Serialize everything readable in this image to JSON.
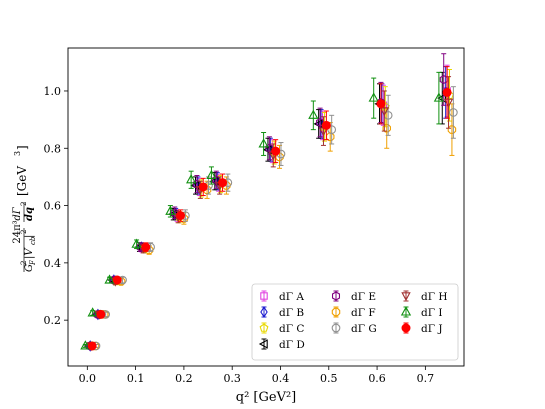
{
  "chart_data": {
    "type": "scatter",
    "xlabel": "q² [GeV²]",
    "ylabel_parts": [
      "24π³",
      "dΓ",
      "G",
      "F",
      "2",
      "|V",
      "cb",
      "|",
      "2",
      "dq",
      "2",
      "[GeV",
      "3",
      "]"
    ],
    "xlim": [
      -0.04,
      0.78
    ],
    "ylim": [
      0.04,
      1.15
    ],
    "xticks": [
      "0.0",
      "0.1",
      "0.2",
      "0.3",
      "0.4",
      "0.5",
      "0.6",
      "0.7"
    ],
    "xtick_values": [
      0.0,
      0.1,
      0.2,
      0.3,
      0.4,
      0.5,
      0.6,
      0.7
    ],
    "yticks": [
      "0.2",
      "0.4",
      "0.6",
      "0.8",
      "1.0"
    ],
    "ytick_values": [
      0.2,
      0.4,
      0.6,
      0.8,
      1.0
    ],
    "legend_position": "lower-right",
    "series": [
      {
        "name": "dΓ A",
        "color": "#e040e0",
        "marker": "square",
        "points": [
          [
            0.007,
            0.11,
            0.005
          ],
          [
            0.024,
            0.22,
            0.008
          ],
          [
            0.057,
            0.34,
            0.01
          ],
          [
            0.115,
            0.45,
            0.015
          ],
          [
            0.186,
            0.565,
            0.02
          ],
          [
            0.232,
            0.665,
            0.03
          ],
          [
            0.272,
            0.68,
            0.03
          ],
          [
            0.383,
            0.79,
            0.04
          ],
          [
            0.487,
            0.88,
            0.05
          ],
          [
            0.613,
            0.95,
            0.07
          ],
          [
            0.745,
            1.0,
            0.09
          ]
        ]
      },
      {
        "name": "dΓ B",
        "color": "#2020d0",
        "marker": "diamond",
        "points": [
          [
            0.006,
            0.11,
            0.005
          ],
          [
            0.022,
            0.22,
            0.008
          ],
          [
            0.055,
            0.34,
            0.01
          ],
          [
            0.112,
            0.455,
            0.015
          ],
          [
            0.183,
            0.57,
            0.02
          ],
          [
            0.229,
            0.67,
            0.03
          ],
          [
            0.269,
            0.685,
            0.03
          ],
          [
            0.379,
            0.795,
            0.04
          ],
          [
            0.484,
            0.885,
            0.05
          ],
          [
            0.61,
            0.955,
            0.07
          ],
          [
            0.742,
            0.995,
            0.09
          ]
        ]
      },
      {
        "name": "dΓ C",
        "color": "#e8d800",
        "marker": "pentagon",
        "points": [
          [
            0.009,
            0.11,
            0.005
          ],
          [
            0.026,
            0.22,
            0.008
          ],
          [
            0.059,
            0.335,
            0.01
          ],
          [
            0.118,
            0.45,
            0.015
          ],
          [
            0.19,
            0.56,
            0.02
          ],
          [
            0.236,
            0.66,
            0.03
          ],
          [
            0.276,
            0.675,
            0.03
          ],
          [
            0.387,
            0.785,
            0.04
          ],
          [
            0.491,
            0.875,
            0.05
          ],
          [
            0.617,
            0.945,
            0.07
          ],
          [
            0.75,
            0.985,
            0.09
          ]
        ]
      },
      {
        "name": "dΓ D",
        "color": "#000000",
        "marker": "triangle-left",
        "points": [
          [
            0.003,
            0.11,
            0.005
          ],
          [
            0.019,
            0.22,
            0.008
          ],
          [
            0.052,
            0.34,
            0.01
          ],
          [
            0.108,
            0.455,
            0.015
          ],
          [
            0.178,
            0.57,
            0.02
          ],
          [
            0.224,
            0.67,
            0.03
          ],
          [
            0.264,
            0.685,
            0.03
          ],
          [
            0.374,
            0.795,
            0.04
          ],
          [
            0.479,
            0.885,
            0.05
          ],
          [
            0.605,
            0.955,
            0.07
          ],
          [
            0.735,
            0.975,
            0.09
          ]
        ]
      },
      {
        "name": "dΓ E",
        "color": "#800080",
        "marker": "hexagon",
        "points": [
          [
            0.005,
            0.11,
            0.005
          ],
          [
            0.021,
            0.22,
            0.008
          ],
          [
            0.054,
            0.34,
            0.01
          ],
          [
            0.11,
            0.455,
            0.015
          ],
          [
            0.181,
            0.575,
            0.02
          ],
          [
            0.227,
            0.675,
            0.03
          ],
          [
            0.267,
            0.69,
            0.03
          ],
          [
            0.377,
            0.8,
            0.04
          ],
          [
            0.482,
            0.89,
            0.05
          ],
          [
            0.608,
            0.96,
            0.07
          ],
          [
            0.738,
            1.04,
            0.09
          ]
        ]
      },
      {
        "name": "dΓ F",
        "color": "#f0a000",
        "marker": "octagon",
        "points": [
          [
            0.016,
            0.11,
            0.005
          ],
          [
            0.035,
            0.22,
            0.008
          ],
          [
            0.07,
            0.335,
            0.01
          ],
          [
            0.128,
            0.445,
            0.015
          ],
          [
            0.2,
            0.555,
            0.02
          ],
          [
            0.248,
            0.655,
            0.03
          ],
          [
            0.288,
            0.67,
            0.03
          ],
          [
            0.398,
            0.77,
            0.04
          ],
          [
            0.503,
            0.84,
            0.05
          ],
          [
            0.62,
            0.87,
            0.07
          ],
          [
            0.755,
            0.865,
            0.09
          ]
        ]
      },
      {
        "name": "dΓ G",
        "color": "#909090",
        "marker": "circle-open",
        "points": [
          [
            0.018,
            0.11,
            0.005
          ],
          [
            0.038,
            0.22,
            0.008
          ],
          [
            0.073,
            0.34,
            0.01
          ],
          [
            0.131,
            0.455,
            0.015
          ],
          [
            0.203,
            0.565,
            0.02
          ],
          [
            0.251,
            0.67,
            0.03
          ],
          [
            0.291,
            0.68,
            0.03
          ],
          [
            0.401,
            0.78,
            0.04
          ],
          [
            0.506,
            0.865,
            0.05
          ],
          [
            0.623,
            0.915,
            0.07
          ],
          [
            0.758,
            0.925,
            0.09
          ]
        ]
      },
      {
        "name": "dΓ H",
        "color": "#a03030",
        "marker": "triangle-down",
        "points": [
          [
            0.008,
            0.11,
            0.005
          ],
          [
            0.025,
            0.22,
            0.008
          ],
          [
            0.058,
            0.335,
            0.01
          ],
          [
            0.116,
            0.45,
            0.015
          ],
          [
            0.188,
            0.56,
            0.02
          ],
          [
            0.234,
            0.655,
            0.03
          ],
          [
            0.274,
            0.67,
            0.03
          ],
          [
            0.385,
            0.775,
            0.04
          ],
          [
            0.489,
            0.86,
            0.05
          ],
          [
            0.615,
            0.93,
            0.07
          ],
          [
            0.748,
            0.96,
            0.09
          ]
        ]
      },
      {
        "name": "dΓ I",
        "color": "#109010",
        "marker": "triangle-up",
        "points": [
          [
            -0.004,
            0.11,
            0.005
          ],
          [
            0.011,
            0.225,
            0.008
          ],
          [
            0.046,
            0.34,
            0.01
          ],
          [
            0.102,
            0.465,
            0.015
          ],
          [
            0.172,
            0.58,
            0.02
          ],
          [
            0.215,
            0.69,
            0.03
          ],
          [
            0.257,
            0.705,
            0.03
          ],
          [
            0.365,
            0.815,
            0.04
          ],
          [
            0.468,
            0.915,
            0.05
          ],
          [
            0.593,
            0.975,
            0.07
          ],
          [
            0.728,
            0.975,
            0.09
          ]
        ]
      },
      {
        "name": "dΓ J",
        "color": "#ff0000",
        "marker": "circle-filled",
        "points": [
          [
            0.01,
            0.11,
            0.005
          ],
          [
            0.028,
            0.22,
            0.008
          ],
          [
            0.062,
            0.34,
            0.01
          ],
          [
            0.121,
            0.455,
            0.015
          ],
          [
            0.193,
            0.565,
            0.02
          ],
          [
            0.24,
            0.665,
            0.03
          ],
          [
            0.28,
            0.68,
            0.03
          ],
          [
            0.39,
            0.79,
            0.04
          ],
          [
            0.495,
            0.88,
            0.05
          ],
          [
            0.608,
            0.955,
            0.07
          ],
          [
            0.745,
            0.995,
            0.09
          ]
        ]
      }
    ]
  }
}
